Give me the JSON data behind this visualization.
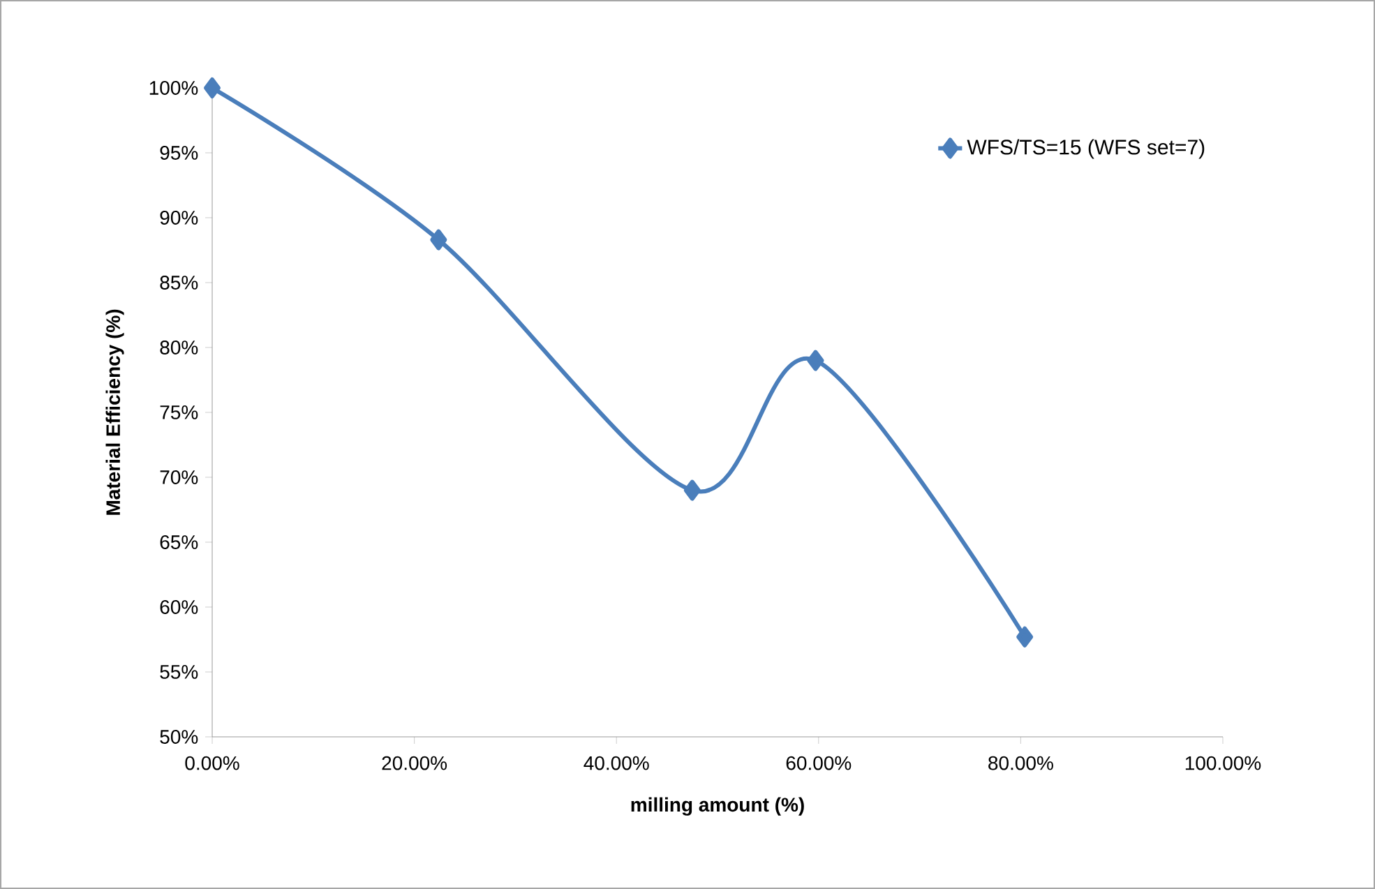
{
  "chart_data": {
    "type": "line",
    "xlabel": "milling amount (%)",
    "ylabel": "Material Efficiency (%)",
    "x": [
      0,
      22.4,
      47.5,
      59.7,
      80.4
    ],
    "series": [
      {
        "name": "WFS/TS=15 (WFS set=7)",
        "color": "#4a7ebb",
        "values": [
          100,
          88.3,
          69.0,
          79.0,
          57.7
        ]
      }
    ],
    "xlim": [
      0,
      100
    ],
    "ylim": [
      50,
      100
    ],
    "xticks": [
      {
        "value": 0,
        "label": "0.00%"
      },
      {
        "value": 20,
        "label": "20.00%"
      },
      {
        "value": 40,
        "label": "40.00%"
      },
      {
        "value": 60,
        "label": "60.00%"
      },
      {
        "value": 80,
        "label": "80.00%"
      },
      {
        "value": 100,
        "label": "100.00%"
      }
    ],
    "yticks": [
      {
        "value": 50,
        "label": "50%"
      },
      {
        "value": 55,
        "label": "55%"
      },
      {
        "value": 60,
        "label": "60%"
      },
      {
        "value": 65,
        "label": "65%"
      },
      {
        "value": 70,
        "label": "70%"
      },
      {
        "value": 75,
        "label": "75%"
      },
      {
        "value": 80,
        "label": "80%"
      },
      {
        "value": 85,
        "label": "85%"
      },
      {
        "value": 90,
        "label": "90%"
      },
      {
        "value": 95,
        "label": "95%"
      },
      {
        "value": 100,
        "label": "100%"
      }
    ],
    "grid": false,
    "legend": "top right",
    "marker": "diamond",
    "line_style": "solid"
  }
}
